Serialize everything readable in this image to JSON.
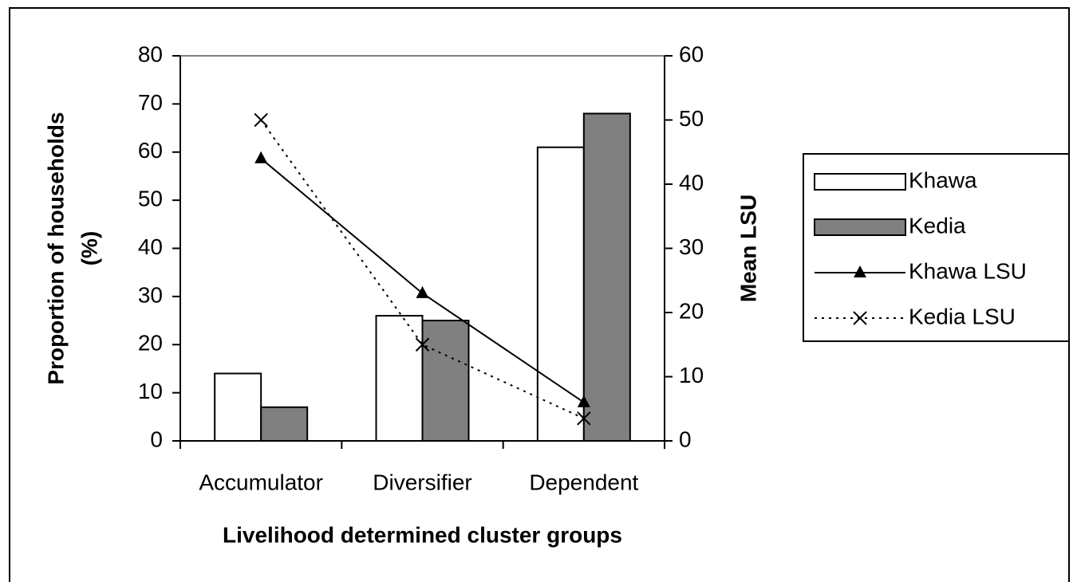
{
  "chart_data": {
    "type": "bar",
    "categories": [
      "Accumulator",
      "Diversifier",
      "Dependent"
    ],
    "xlabel": "Livelihood determined cluster groups",
    "ylabel": [
      "Proportion of households",
      "(%)"
    ],
    "y2label": "Mean LSU",
    "ylim": [
      0,
      80
    ],
    "yticks": [
      0,
      10,
      20,
      30,
      40,
      50,
      60,
      70,
      80
    ],
    "y2lim": [
      0,
      60
    ],
    "y2ticks": [
      0,
      10,
      20,
      30,
      40,
      50,
      60
    ],
    "legend": "right",
    "series": [
      {
        "name": "Khawa",
        "type": "bar",
        "color": "#ffffff",
        "values": [
          14,
          26,
          61
        ]
      },
      {
        "name": "Kedia",
        "type": "bar",
        "color": "#808080",
        "values": [
          7,
          25,
          68
        ]
      },
      {
        "name": "Khawa LSU",
        "type": "line",
        "axis": "y2",
        "color": "#000000",
        "line_style": "solid",
        "marker": "triangle",
        "values": [
          44,
          23,
          6
        ]
      },
      {
        "name": "Kedia LSU",
        "type": "line",
        "axis": "y2",
        "color": "#000000",
        "line_style": "dotted",
        "marker": "x",
        "values": [
          50,
          15,
          3.5
        ]
      }
    ]
  }
}
